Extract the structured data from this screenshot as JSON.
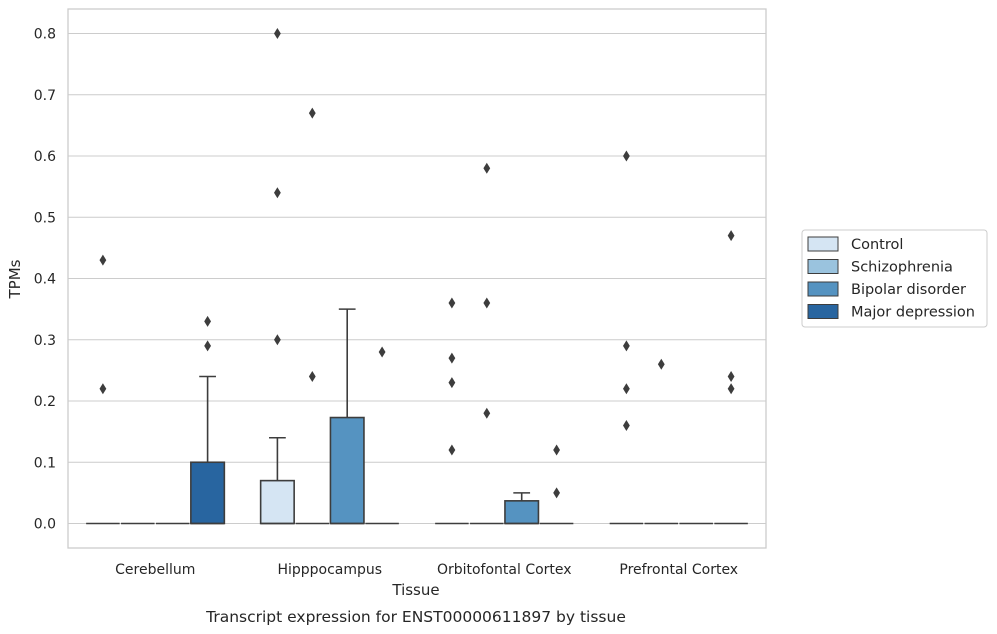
{
  "chart_data": {
    "type": "box",
    "xlabel": "Tissue",
    "ylabel": "TPMs",
    "caption": "Transcript expression for ENST00000611897 by tissue",
    "ylim": [
      -0.04,
      0.84
    ],
    "yticks": [
      "0.0",
      "0.1",
      "0.2",
      "0.3",
      "0.4",
      "0.5",
      "0.6",
      "0.7",
      "0.8"
    ],
    "grid": "horizontal",
    "legend_position": "right",
    "categories": [
      "Cerebellum",
      "Hipppocampus",
      "Orbitofontal Cortex",
      "Prefrontal Cortex"
    ],
    "series": [
      {
        "name": "Control",
        "color": "#d5e5f3",
        "boxes": [
          {
            "q1": 0,
            "median": 0,
            "q3": 0,
            "whisker_low": 0,
            "whisker_high": 0,
            "outliers": [
              0.22,
              0.43
            ]
          },
          {
            "q1": 0,
            "median": 0,
            "q3": 0.07,
            "whisker_low": 0,
            "whisker_high": 0.14,
            "outliers": [
              0.3,
              0.54,
              0.8
            ]
          },
          {
            "q1": 0,
            "median": 0,
            "q3": 0,
            "whisker_low": 0,
            "whisker_high": 0,
            "outliers": [
              0.12,
              0.23,
              0.27,
              0.36
            ]
          },
          {
            "q1": 0,
            "median": 0,
            "q3": 0,
            "whisker_low": 0,
            "whisker_high": 0,
            "outliers": [
              0.16,
              0.22,
              0.29,
              0.6
            ]
          }
        ]
      },
      {
        "name": "Schizophrenia",
        "color": "#9ac3de",
        "boxes": [
          {
            "q1": 0,
            "median": 0,
            "q3": 0,
            "whisker_low": 0,
            "whisker_high": 0,
            "outliers": []
          },
          {
            "q1": 0,
            "median": 0,
            "q3": 0,
            "whisker_low": 0,
            "whisker_high": 0,
            "outliers": [
              0.24,
              0.67
            ]
          },
          {
            "q1": 0,
            "median": 0,
            "q3": 0,
            "whisker_low": 0,
            "whisker_high": 0,
            "outliers": [
              0.18,
              0.36,
              0.58
            ]
          },
          {
            "q1": 0,
            "median": 0,
            "q3": 0,
            "whisker_low": 0,
            "whisker_high": 0,
            "outliers": [
              0.26
            ]
          }
        ]
      },
      {
        "name": "Bipolar disorder",
        "color": "#5593c1",
        "boxes": [
          {
            "q1": 0,
            "median": 0,
            "q3": 0,
            "whisker_low": 0,
            "whisker_high": 0,
            "outliers": []
          },
          {
            "q1": 0,
            "median": 0,
            "q3": 0.173,
            "whisker_low": 0,
            "whisker_high": 0.35,
            "outliers": []
          },
          {
            "q1": 0,
            "median": 0,
            "q3": 0.037,
            "whisker_low": 0,
            "whisker_high": 0.05,
            "outliers": []
          },
          {
            "q1": 0,
            "median": 0,
            "q3": 0,
            "whisker_low": 0,
            "whisker_high": 0,
            "outliers": []
          }
        ]
      },
      {
        "name": "Major depression",
        "color": "#2865a0",
        "boxes": [
          {
            "q1": 0,
            "median": 0,
            "q3": 0.1,
            "whisker_low": 0,
            "whisker_high": 0.24,
            "outliers": [
              0.29,
              0.33
            ]
          },
          {
            "q1": 0,
            "median": 0,
            "q3": 0,
            "whisker_low": 0,
            "whisker_high": 0,
            "outliers": [
              0.28
            ]
          },
          {
            "q1": 0,
            "median": 0,
            "q3": 0,
            "whisker_low": 0,
            "whisker_high": 0,
            "outliers": [
              0.05,
              0.12
            ]
          },
          {
            "q1": 0,
            "median": 0,
            "q3": 0,
            "whisker_low": 0,
            "whisker_high": 0,
            "outliers": [
              0.22,
              0.24,
              0.47
            ]
          }
        ]
      }
    ]
  }
}
